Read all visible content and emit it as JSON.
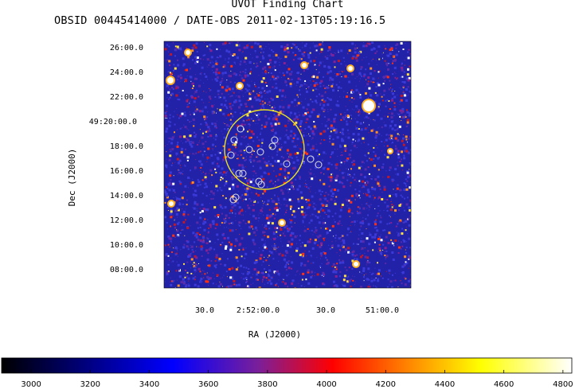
{
  "header": {
    "title": "UVOT Finding Chart",
    "subtitle": "OBSID 00445414000 / DATE-OBS 2011-02-13T05:19:16.5"
  },
  "chart_data": {
    "type": "heatmap",
    "xlabel": "RA (J2000)",
    "ylabel": "Dec (J2000)",
    "x_ticks": [
      "30.0",
      "2:52:00.0",
      "30.0",
      "51:00.0"
    ],
    "y_ticks": [
      "26:00.0",
      "24:00.0",
      "22:00.0",
      "49:20:00.0",
      "18:00.0",
      "16:00.0",
      "14:00.0",
      "12:00.0",
      "10:00.0",
      "08:00.0"
    ],
    "colorbar": {
      "min": 2900,
      "max": 4830,
      "ticks": [
        3000,
        3200,
        3400,
        3600,
        3800,
        4000,
        4200,
        4400,
        4600,
        4800
      ],
      "labels": [
        "3000",
        "3200",
        "3400",
        "3600",
        "3800",
        "4000",
        "4200",
        "4400",
        "4600",
        "4800"
      ]
    },
    "colors": {
      "background": "#2020a0",
      "circle_large": "#e8e020",
      "circle_small": "#e0e0e0",
      "axis": "#000000"
    }
  }
}
